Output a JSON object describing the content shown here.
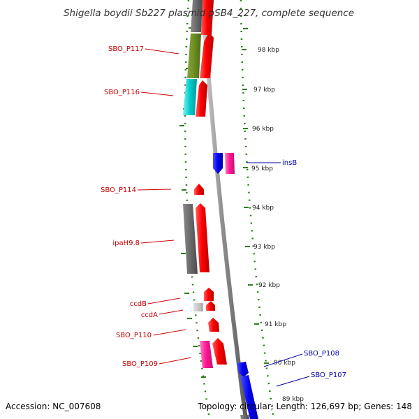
{
  "title": "Shigella boydii Sb227 plasmid pSB4_227, complete sequence",
  "footer": {
    "accession": "Accession: NC_007608",
    "topology": "Topology: circular; Length: 126,697 bp; Genes: 148"
  },
  "colors": {
    "forward_label": "#cc0000",
    "reverse_label": "#0000aa",
    "tick": "#2e7d1e"
  },
  "ticks": [
    {
      "label": "98 kbp"
    },
    {
      "label": "97 kbp"
    },
    {
      "label": "96 kbp"
    },
    {
      "label": "95 kbp"
    },
    {
      "label": "94 kbp"
    },
    {
      "label": "93 kbp"
    },
    {
      "label": "92 kbp"
    },
    {
      "label": "91 kbp"
    },
    {
      "label": "90 kbp"
    },
    {
      "label": "89 kbp"
    }
  ],
  "gene_labels": {
    "left": [
      "SBO_P117",
      "SBO_P116",
      "SBO_P114",
      "ipaH9.8",
      "ccdB",
      "ccdA",
      "SBO_P110",
      "SBO_P109"
    ],
    "right": [
      "insB",
      "SBO_P108",
      "SBO_P107"
    ]
  }
}
